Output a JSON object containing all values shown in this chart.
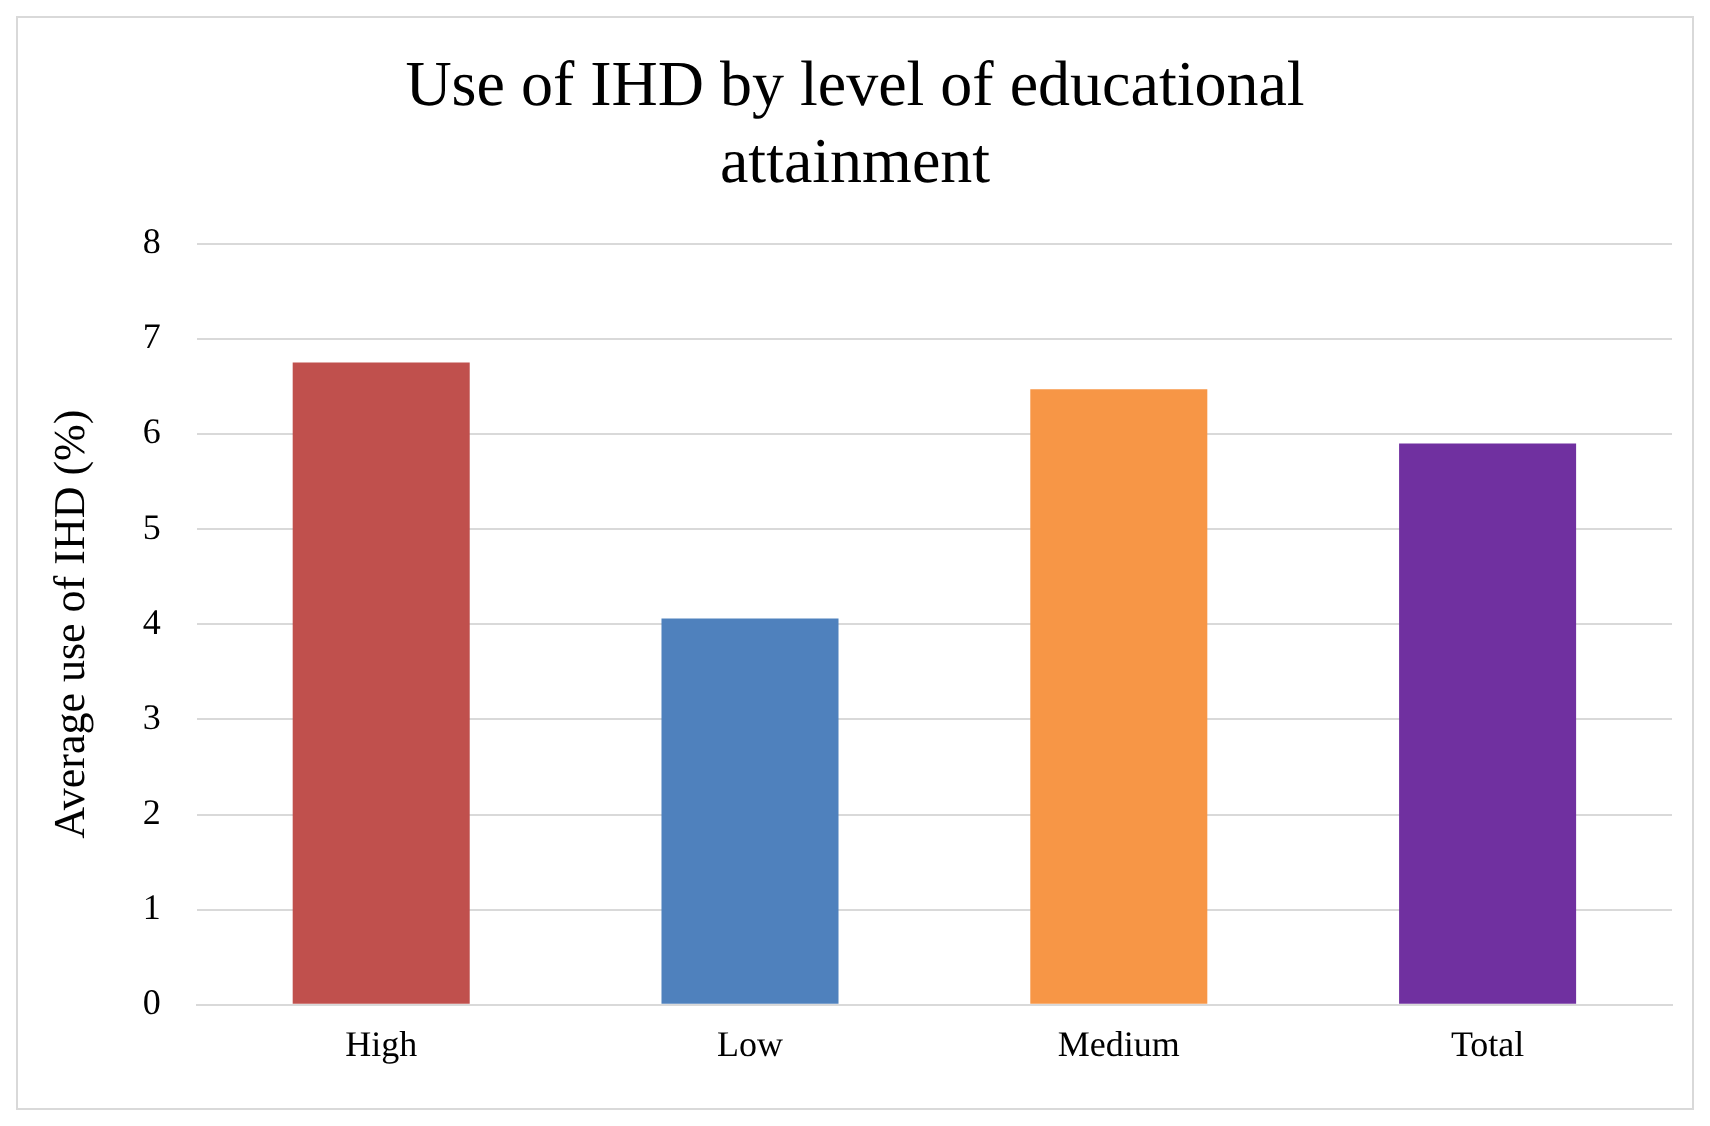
{
  "chart_data": {
    "type": "bar",
    "title": "Use of IHD by level of educational attainment",
    "ylabel": "Average use of IHD (%)",
    "categories": [
      "High",
      "Low",
      "Medium",
      "Total"
    ],
    "values": [
      6.75,
      4.06,
      6.47,
      5.9
    ],
    "colors": [
      "#c0504d",
      "#4f81bd",
      "#f79646",
      "#7030a0"
    ],
    "ylim": [
      0,
      8
    ],
    "yticks": [
      0,
      1,
      2,
      3,
      4,
      5,
      6,
      7,
      8
    ],
    "grid": "y",
    "legend": false
  }
}
